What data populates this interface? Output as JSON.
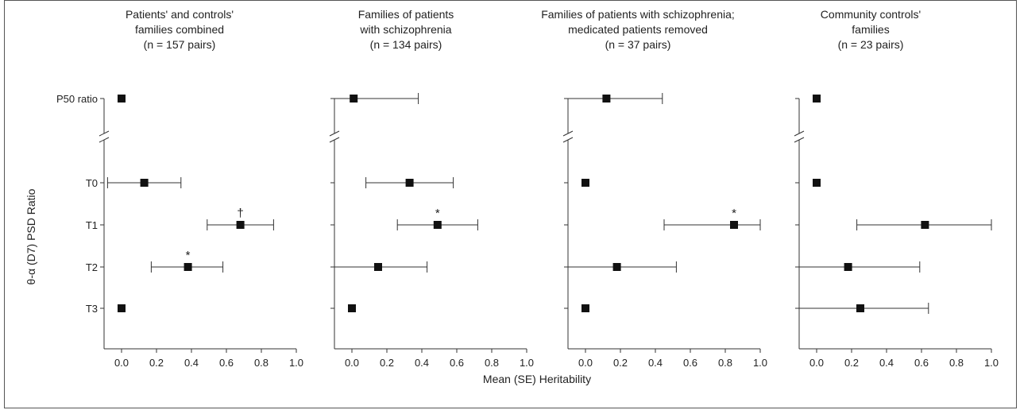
{
  "figure": {
    "ylabel": "θ-α (D7) PSD Ratio",
    "xlabel": "Mean (SE) Heritability"
  },
  "chart_data": [
    {
      "type": "scatter",
      "title": [
        "Patients' and controls'",
        "families combined",
        "(n = 157 pairs)"
      ],
      "categories": [
        "P50 ratio",
        "T0",
        "T1",
        "T2",
        "T3"
      ],
      "points": [
        {
          "category": "P50 ratio",
          "mean": 0.0
        },
        {
          "category": "T0",
          "mean": 0.13,
          "low": -0.08,
          "high": 0.34
        },
        {
          "category": "T1",
          "mean": 0.68,
          "low": 0.49,
          "high": 0.87,
          "annotation": "†"
        },
        {
          "category": "T2",
          "mean": 0.38,
          "low": 0.17,
          "high": 0.58,
          "annotation": "*"
        },
        {
          "category": "T3",
          "mean": 0.0
        }
      ],
      "xlim": [
        -0.1,
        1.0
      ],
      "xticks": [
        "0.0",
        "0.2",
        "0.4",
        "0.6",
        "0.8",
        "1.0"
      ]
    },
    {
      "type": "scatter",
      "title": [
        "Families of patients",
        "with schizophrenia",
        "(n = 134 pairs)"
      ],
      "categories": [
        "P50 ratio",
        "T0",
        "T1",
        "T2",
        "T3"
      ],
      "points": [
        {
          "category": "P50 ratio",
          "mean": 0.01,
          "low": -0.1,
          "high": 0.38
        },
        {
          "category": "T0",
          "mean": 0.33,
          "low": 0.08,
          "high": 0.58
        },
        {
          "category": "T1",
          "mean": 0.49,
          "low": 0.26,
          "high": 0.72,
          "annotation": "*"
        },
        {
          "category": "T2",
          "mean": 0.15,
          "low": -0.1,
          "high": 0.43
        },
        {
          "category": "T3",
          "mean": 0.0
        }
      ],
      "xlim": [
        -0.1,
        1.0
      ],
      "xticks": [
        "0.0",
        "0.2",
        "0.4",
        "0.6",
        "0.8",
        "1.0"
      ]
    },
    {
      "type": "scatter",
      "title": [
        "Families of patients with schizophrenia;",
        "medicated patients removed",
        "(n = 37 pairs)"
      ],
      "categories": [
        "P50 ratio",
        "T0",
        "T1",
        "T2",
        "T3"
      ],
      "points": [
        {
          "category": "P50 ratio",
          "mean": 0.12,
          "low": -0.1,
          "high": 0.44
        },
        {
          "category": "T0",
          "mean": 0.0
        },
        {
          "category": "T1",
          "mean": 0.85,
          "low": 0.45,
          "high": 1.0,
          "annotation": "*"
        },
        {
          "category": "T2",
          "mean": 0.18,
          "low": -0.1,
          "high": 0.52
        },
        {
          "category": "T3",
          "mean": 0.0
        }
      ],
      "xlim": [
        -0.1,
        1.0
      ],
      "xticks": [
        "0.0",
        "0.2",
        "0.4",
        "0.6",
        "0.8",
        "1.0"
      ]
    },
    {
      "type": "scatter",
      "title": [
        "Community controls'",
        "families",
        "(n = 23 pairs)"
      ],
      "categories": [
        "P50 ratio",
        "T0",
        "T1",
        "T2",
        "T3"
      ],
      "points": [
        {
          "category": "P50 ratio",
          "mean": 0.0
        },
        {
          "category": "T0",
          "mean": 0.0
        },
        {
          "category": "T1",
          "mean": 0.62,
          "low": 0.23,
          "high": 1.0
        },
        {
          "category": "T2",
          "mean": 0.18,
          "low": -0.1,
          "high": 0.59
        },
        {
          "category": "T3",
          "mean": 0.25,
          "low": -0.1,
          "high": 0.64
        }
      ],
      "xlim": [
        -0.1,
        1.0
      ],
      "xticks": [
        "0.0",
        "0.2",
        "0.4",
        "0.6",
        "0.8",
        "1.0"
      ]
    }
  ]
}
